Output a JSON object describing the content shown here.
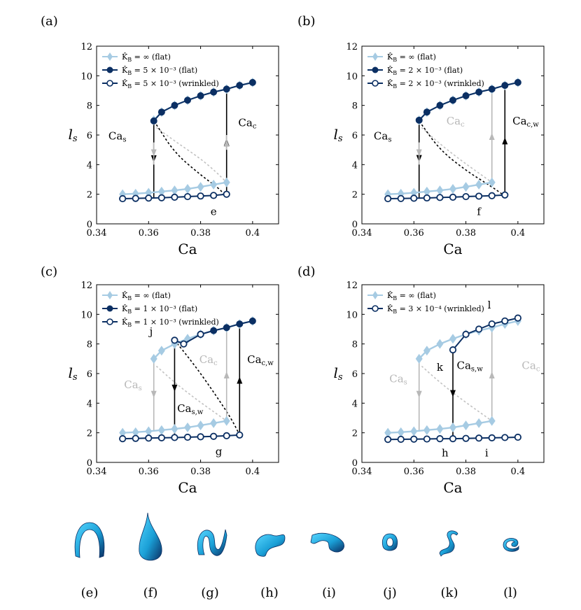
{
  "colors": {
    "flat_inf": "#a6cbe3",
    "dark": "#0b2f63",
    "grey": "#b8b8b8",
    "black": "#000000",
    "droplet": "#29b6e8"
  },
  "chart_data": [
    {
      "type": "line",
      "panel_label": "(a)",
      "xlabel": "Ca",
      "ylabel": "l_s",
      "xlim": [
        0.34,
        0.41
      ],
      "ylim": [
        0,
        12
      ],
      "xticks": [
        "0.34",
        "0.36",
        "0.38",
        "0.4"
      ],
      "yticks": [
        "0",
        "2",
        "4",
        "6",
        "8",
        "10",
        "12"
      ],
      "legend": [
        "K̂_B = ∞ (flat)",
        "K̂_B = 5 × 10⁻³ (flat)",
        "K̂_B = 5 × 10⁻³ (wrinkled)"
      ],
      "series": [
        {
          "name": "K̂_B = ∞ (flat)",
          "style": "inf",
          "x": [
            0.35,
            0.355,
            0.36,
            0.365,
            0.37,
            0.375,
            0.38,
            0.385,
            0.39,
            0.395,
            0.4
          ],
          "y": [
            2.0,
            2.04,
            2.1,
            2.18,
            2.26,
            2.36,
            2.5,
            2.65,
            2.8,
            9.3,
            9.55
          ]
        },
        {
          "name": "upper_inf",
          "style": "inf",
          "legend": false,
          "x": [
            0.362,
            0.365,
            0.37,
            0.375,
            0.38,
            0.385,
            0.39,
            0.395,
            0.4
          ],
          "y": [
            7.0,
            7.55,
            8.0,
            8.35,
            8.65,
            8.9,
            9.1,
            9.35,
            9.55
          ]
        },
        {
          "name": "K̂_B = 5 × 10⁻³ (flat)",
          "style": "flat",
          "x": [
            0.362,
            0.365,
            0.37,
            0.375,
            0.38,
            0.385,
            0.39,
            0.395,
            0.4
          ],
          "y": [
            6.95,
            7.55,
            8.0,
            8.35,
            8.65,
            8.9,
            9.1,
            9.35,
            9.55
          ]
        },
        {
          "name": "K̂_B = 5 × 10⁻³ (wrinkled)",
          "style": "wrinkled",
          "x": [
            0.35,
            0.355,
            0.36,
            0.365,
            0.37,
            0.375,
            0.38,
            0.385,
            0.39
          ],
          "y": [
            1.7,
            1.72,
            1.74,
            1.76,
            1.8,
            1.84,
            1.88,
            1.92,
            2.0
          ]
        }
      ],
      "unstable": [
        {
          "style": "grey",
          "x": [
            0.363,
            0.37,
            0.38,
            0.386,
            0.39
          ],
          "y": [
            6.5,
            5.6,
            4.4,
            3.5,
            2.8
          ]
        },
        {
          "style": "black",
          "x": [
            0.363,
            0.37,
            0.38,
            0.387,
            0.389
          ],
          "y": [
            6.7,
            4.8,
            3.3,
            2.4,
            2.0
          ]
        }
      ],
      "arrows": [
        {
          "style": "black",
          "dir": "down",
          "x": 0.362,
          "y_from": 6.95,
          "y_to": 1.74
        },
        {
          "style": "black",
          "dir": "up",
          "x": 0.39,
          "y_from": 2.0,
          "y_to": 9.1
        },
        {
          "style": "grey",
          "dir": "down",
          "x": 0.362,
          "y_from": 5.5,
          "y_to": 4.0
        },
        {
          "style": "grey",
          "dir": "up",
          "x": 0.39,
          "y_from": 5.0,
          "y_to": 6.0
        }
      ],
      "annotations": [
        {
          "text": "Ca_s",
          "color": "black",
          "x": 0.348,
          "y": 5.7
        },
        {
          "text": "Ca_c",
          "color": "black",
          "x": 0.398,
          "y": 6.6
        },
        {
          "text": "e",
          "color": "black",
          "x": 0.385,
          "y": 0.6
        }
      ]
    },
    {
      "type": "line",
      "panel_label": "(b)",
      "xlabel": "Ca",
      "ylabel": "l_s",
      "xlim": [
        0.34,
        0.41
      ],
      "ylim": [
        0,
        12
      ],
      "xticks": [
        "0.34",
        "0.36",
        "0.38",
        "0.4"
      ],
      "yticks": [
        "0",
        "2",
        "4",
        "6",
        "8",
        "10",
        "12"
      ],
      "legend": [
        "K̂_B = ∞ (flat)",
        "K̂_B = 2 × 10⁻³ (flat)",
        "K̂_B = 2 × 10⁻³ (wrinkled)"
      ],
      "series": [
        {
          "name": "K̂_B = ∞ (flat)",
          "style": "inf",
          "x": [
            0.35,
            0.355,
            0.36,
            0.365,
            0.37,
            0.375,
            0.38,
            0.385,
            0.39
          ],
          "y": [
            2.0,
            2.04,
            2.1,
            2.18,
            2.26,
            2.36,
            2.5,
            2.65,
            2.8
          ]
        },
        {
          "name": "upper_inf",
          "style": "inf",
          "legend": false,
          "x": [
            0.362,
            0.365,
            0.37,
            0.375,
            0.38,
            0.385,
            0.39,
            0.395,
            0.4
          ],
          "y": [
            7.0,
            7.55,
            8.0,
            8.35,
            8.65,
            8.9,
            9.1,
            9.35,
            9.55
          ]
        },
        {
          "name": "K̂_B = 2 × 10⁻³ (flat)",
          "style": "flat",
          "x": [
            0.362,
            0.365,
            0.37,
            0.375,
            0.38,
            0.385,
            0.39,
            0.395,
            0.4
          ],
          "y": [
            7.0,
            7.55,
            8.0,
            8.35,
            8.65,
            8.9,
            9.1,
            9.35,
            9.55
          ]
        },
        {
          "name": "K̂_B = 2 × 10⁻³ (wrinkled)",
          "style": "wrinkled",
          "x": [
            0.35,
            0.355,
            0.36,
            0.365,
            0.37,
            0.375,
            0.38,
            0.385,
            0.39,
            0.395
          ],
          "y": [
            1.7,
            1.71,
            1.73,
            1.75,
            1.78,
            1.8,
            1.84,
            1.87,
            1.9,
            1.95
          ]
        }
      ],
      "unstable": [
        {
          "style": "grey",
          "x": [
            0.363,
            0.37,
            0.378,
            0.386,
            0.39
          ],
          "y": [
            6.5,
            5.4,
            4.3,
            3.3,
            2.8
          ]
        },
        {
          "style": "black",
          "x": [
            0.363,
            0.37,
            0.38,
            0.39,
            0.394
          ],
          "y": [
            6.7,
            5.0,
            3.6,
            2.5,
            2.0
          ]
        }
      ],
      "arrows": [
        {
          "style": "black",
          "dir": "down",
          "x": 0.362,
          "y_from": 7.0,
          "y_to": 1.73
        },
        {
          "style": "black",
          "dir": "up",
          "x": 0.395,
          "y_from": 1.95,
          "y_to": 9.35
        },
        {
          "style": "grey",
          "dir": "up",
          "x": 0.39,
          "y_from": 2.8,
          "y_to": 9.1
        },
        {
          "style": "grey",
          "dir": "down",
          "x": 0.362,
          "y_from": 5.5,
          "y_to": 4.0
        }
      ],
      "annotations": [
        {
          "text": "Ca_s",
          "color": "black",
          "x": 0.348,
          "y": 5.7
        },
        {
          "text": "Ca_c",
          "color": "grey",
          "x": 0.376,
          "y": 6.7
        },
        {
          "text": "Ca_c,w",
          "color": "black",
          "x": 0.403,
          "y": 6.7
        },
        {
          "text": "f",
          "color": "black",
          "x": 0.385,
          "y": 0.6
        }
      ]
    },
    {
      "type": "line",
      "panel_label": "(c)",
      "xlabel": "Ca",
      "ylabel": "l_s",
      "xlim": [
        0.34,
        0.41
      ],
      "ylim": [
        0,
        12
      ],
      "xticks": [
        "0.34",
        "0.36",
        "0.38",
        "0.4"
      ],
      "yticks": [
        "0",
        "2",
        "4",
        "6",
        "8",
        "10",
        "12"
      ],
      "legend": [
        "K̂_B = ∞ (flat)",
        "K̂_B = 1 × 10⁻³ (flat)",
        "K̂_B = 1 × 10⁻³ (wrinkled)"
      ],
      "series": [
        {
          "name": "K̂_B = ∞ (flat)",
          "style": "inf",
          "x": [
            0.35,
            0.355,
            0.36,
            0.365,
            0.37,
            0.375,
            0.38,
            0.385,
            0.39
          ],
          "y": [
            2.0,
            2.04,
            2.1,
            2.18,
            2.26,
            2.36,
            2.5,
            2.65,
            2.8
          ]
        },
        {
          "name": "upper_inf",
          "style": "inf",
          "legend": false,
          "x": [
            0.362,
            0.365,
            0.37,
            0.375,
            0.38,
            0.385,
            0.39,
            0.395,
            0.4
          ],
          "y": [
            7.0,
            7.55,
            8.0,
            8.35,
            8.65,
            8.9,
            9.1,
            9.35,
            9.55
          ]
        },
        {
          "name": "K̂_B = 1 × 10⁻³ (flat)",
          "style": "flat",
          "x": [
            0.38,
            0.385,
            0.39,
            0.395,
            0.4
          ],
          "y": [
            8.65,
            8.9,
            9.1,
            9.35,
            9.55
          ]
        },
        {
          "name": "K̂_B = 1 × 10⁻³ (wrinkled)",
          "style": "wrinkled",
          "x": [
            0.35,
            0.355,
            0.36,
            0.365,
            0.37,
            0.375,
            0.38,
            0.385,
            0.39,
            0.395
          ],
          "y": [
            1.6,
            1.62,
            1.64,
            1.66,
            1.68,
            1.7,
            1.73,
            1.76,
            1.8,
            1.85
          ]
        },
        {
          "name": "wrinkled_upper",
          "style": "wrinkled",
          "legend": false,
          "x": [
            0.37,
            0.3735,
            0.38
          ],
          "y": [
            8.25,
            8.0,
            8.65
          ]
        }
      ],
      "unstable": [
        {
          "style": "grey",
          "x": [
            0.363,
            0.37,
            0.378,
            0.386,
            0.39
          ],
          "y": [
            6.5,
            5.4,
            4.3,
            3.3,
            2.8
          ]
        },
        {
          "style": "black",
          "x": [
            0.37,
            0.378,
            0.386,
            0.392,
            0.395
          ],
          "y": [
            8.25,
            6.5,
            4.5,
            2.9,
            1.85
          ]
        }
      ],
      "arrows": [
        {
          "style": "black",
          "dir": "down",
          "x": 0.37,
          "y_from": 8.25,
          "y_to": 1.68
        },
        {
          "style": "black",
          "dir": "up",
          "x": 0.395,
          "y_from": 1.85,
          "y_to": 9.35
        },
        {
          "style": "grey",
          "dir": "up",
          "x": 0.39,
          "y_from": 2.8,
          "y_to": 9.1
        },
        {
          "style": "grey",
          "dir": "down",
          "x": 0.362,
          "y_from": 7.0,
          "y_to": 2.1
        }
      ],
      "annotations": [
        {
          "text": "Ca_s",
          "color": "grey",
          "x": 0.354,
          "y": 5.0
        },
        {
          "text": "Ca_s,w",
          "color": "black",
          "x": 0.376,
          "y": 3.4
        },
        {
          "text": "Ca_c",
          "color": "grey",
          "x": 0.383,
          "y": 6.7
        },
        {
          "text": "Ca_c,w",
          "color": "black",
          "x": 0.403,
          "y": 6.7
        },
        {
          "text": "j",
          "color": "black",
          "x": 0.361,
          "y": 8.6
        },
        {
          "text": "g",
          "color": "black",
          "x": 0.387,
          "y": 0.5
        }
      ]
    },
    {
      "type": "line",
      "panel_label": "(d)",
      "xlabel": "Ca",
      "ylabel": "l_s",
      "xlim": [
        0.34,
        0.41
      ],
      "ylim": [
        0,
        12
      ],
      "xticks": [
        "0.34",
        "0.36",
        "0.38",
        "0.4"
      ],
      "yticks": [
        "0",
        "2",
        "4",
        "6",
        "8",
        "10",
        "12"
      ],
      "legend": [
        "K̂_B = ∞ (flat)",
        "K̂_B = 3 × 10⁻⁴ (wrinkled)"
      ],
      "series": [
        {
          "name": "K̂_B = ∞ (flat)",
          "style": "inf",
          "x": [
            0.35,
            0.355,
            0.36,
            0.365,
            0.37,
            0.375,
            0.38,
            0.385,
            0.39
          ],
          "y": [
            2.0,
            2.04,
            2.1,
            2.18,
            2.26,
            2.36,
            2.5,
            2.65,
            2.8
          ]
        },
        {
          "name": "upper_inf",
          "style": "inf",
          "legend": false,
          "x": [
            0.362,
            0.365,
            0.37,
            0.375,
            0.38,
            0.385,
            0.39,
            0.395,
            0.4
          ],
          "y": [
            7.0,
            7.55,
            8.0,
            8.35,
            8.65,
            8.9,
            9.1,
            9.35,
            9.55
          ]
        },
        {
          "name": "K̂_B = 3 × 10⁻⁴ (wrinkled)",
          "style": "wrinkled",
          "x": [
            0.35,
            0.355,
            0.36,
            0.365,
            0.37,
            0.375,
            0.38,
            0.385,
            0.39,
            0.395,
            0.4
          ],
          "y": [
            1.55,
            1.56,
            1.57,
            1.58,
            1.6,
            1.6,
            1.62,
            1.64,
            1.66,
            1.68,
            1.7
          ]
        },
        {
          "name": "wrinkled_upper",
          "style": "wrinkled",
          "legend": false,
          "x": [
            0.375,
            0.38,
            0.385,
            0.39,
            0.395,
            0.4
          ],
          "y": [
            7.6,
            8.65,
            9.0,
            9.35,
            9.55,
            9.75
          ]
        }
      ],
      "unstable": [
        {
          "style": "grey",
          "x": [
            0.363,
            0.37,
            0.378,
            0.386,
            0.39
          ],
          "y": [
            6.5,
            5.4,
            4.3,
            3.3,
            2.8
          ]
        }
      ],
      "arrows": [
        {
          "style": "black",
          "dir": "down",
          "x": 0.375,
          "y_from": 7.6,
          "y_to": 1.6
        },
        {
          "style": "grey",
          "dir": "up",
          "x": 0.39,
          "y_from": 2.8,
          "y_to": 9.1
        },
        {
          "style": "grey",
          "dir": "down",
          "x": 0.362,
          "y_from": 7.0,
          "y_to": 2.1
        }
      ],
      "annotations": [
        {
          "text": "Ca_s",
          "color": "grey",
          "x": 0.354,
          "y": 5.4
        },
        {
          "text": "Ca_s,w",
          "color": "black",
          "x": 0.3815,
          "y": 6.3
        },
        {
          "text": "Ca_c",
          "color": "grey",
          "x": 0.405,
          "y": 6.3
        },
        {
          "text": "k",
          "color": "black",
          "x": 0.37,
          "y": 6.2
        },
        {
          "text": "l",
          "color": "black",
          "x": 0.389,
          "y": 10.4
        },
        {
          "text": "h",
          "color": "black",
          "x": 0.372,
          "y": 0.4
        },
        {
          "text": "i",
          "color": "black",
          "x": 0.388,
          "y": 0.4
        }
      ]
    }
  ],
  "thumbnails": [
    {
      "label": "(e)",
      "shape": "arch"
    },
    {
      "label": "(f)",
      "shape": "drop"
    },
    {
      "label": "(g)",
      "shape": "swirl"
    },
    {
      "label": "(h)",
      "shape": "twist"
    },
    {
      "label": "(i)",
      "shape": "flatswirl"
    },
    {
      "label": "(j)",
      "shape": "ring"
    },
    {
      "label": "(k)",
      "shape": "sstrip"
    },
    {
      "label": "(l)",
      "shape": "curl"
    }
  ]
}
